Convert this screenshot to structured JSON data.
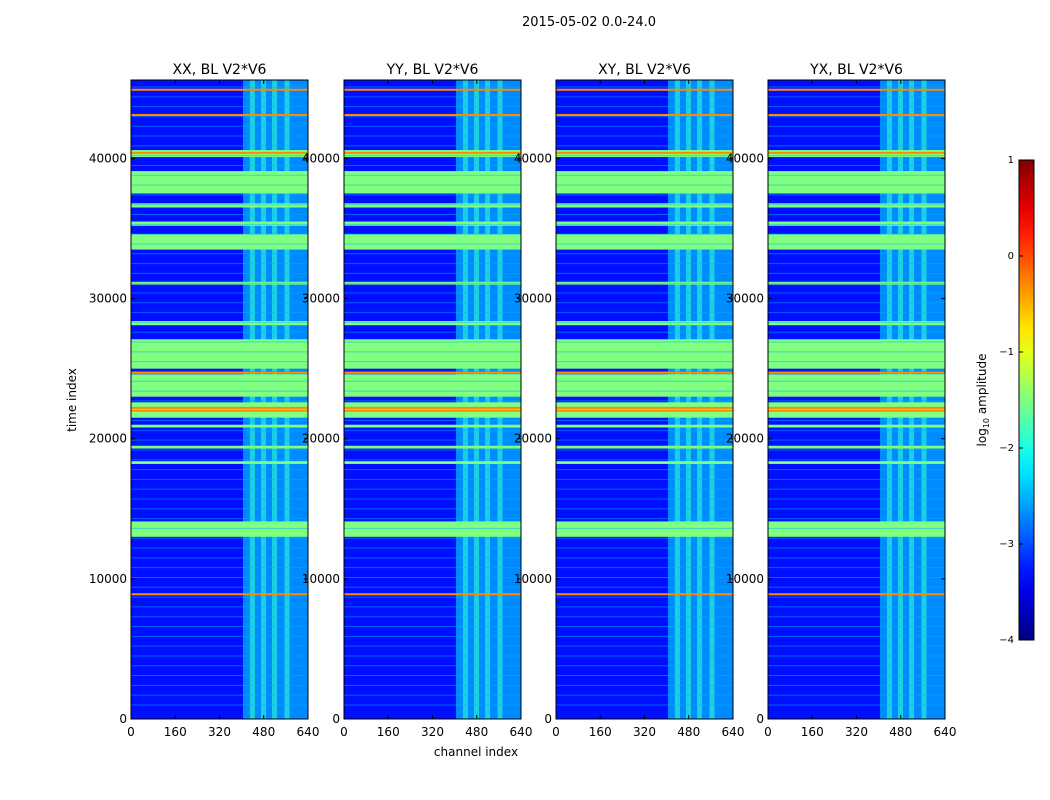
{
  "chart_data": {
    "type": "heatmap",
    "suptitle": "2015-05-02 0.0-24.0",
    "xlabel": "channel index",
    "ylabel": "time index",
    "xlim": [
      0,
      640
    ],
    "ylim": [
      0,
      45600
    ],
    "xticks": [
      0,
      160,
      320,
      480,
      640
    ],
    "yticks": [
      0,
      10000,
      20000,
      30000,
      40000
    ],
    "xtick_labels": [
      "0",
      "160",
      "320",
      "480",
      "640"
    ],
    "ytick_labels": [
      "0",
      "10000",
      "20000",
      "30000",
      "40000"
    ],
    "colorbar": {
      "label": "log10 amplitude",
      "label_main": "log",
      "label_sub": "10",
      "label_tail": " amplitude",
      "range": [
        -4,
        1
      ],
      "ticks": [
        1,
        0,
        -1,
        -2,
        -3,
        -4
      ],
      "tick_labels": [
        "1",
        "0",
        "−1",
        "−2",
        "−3",
        "−4"
      ]
    },
    "panels": [
      {
        "title": "XX, BL V2*V6",
        "rfi_channel_start": 405
      },
      {
        "title": "YY, BL V2*V6",
        "rfi_channel_start": 405
      },
      {
        "title": "XY, BL V2*V6",
        "rfi_channel_start": 405
      },
      {
        "title": "YX, BL V2*V6",
        "rfi_channel_start": 405
      }
    ],
    "background_log_amplitude": -3.3,
    "flagged_row_log_amplitude": -1.5,
    "flagged_time_ranges": [
      [
        13000,
        14100
      ],
      [
        18200,
        18400
      ],
      [
        19300,
        19500
      ],
      [
        20800,
        21000
      ],
      [
        21500,
        22600
      ],
      [
        23000,
        24600
      ],
      [
        25000,
        27100
      ],
      [
        28100,
        28400
      ],
      [
        31000,
        31200
      ],
      [
        33500,
        34600
      ],
      [
        35200,
        35500
      ],
      [
        36500,
        36800
      ],
      [
        37500,
        39100
      ],
      [
        40100,
        40600
      ]
    ],
    "rfi_lines_time": [
      8900,
      22000,
      22200,
      24700,
      40400,
      43100,
      44900
    ]
  }
}
